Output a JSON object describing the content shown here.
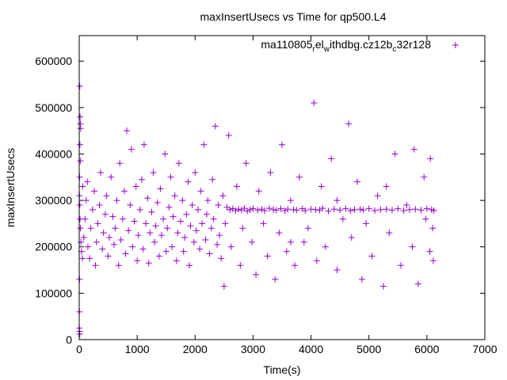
{
  "chart_data": {
    "type": "scatter",
    "title": "maxInsertUsecs vs Time for qp500.L4",
    "xlabel": "Time(s)",
    "ylabel": "maxInsertUsecs",
    "xlim": [
      0,
      7000
    ],
    "ylim": [
      0,
      655000
    ],
    "xticks": [
      0,
      1000,
      2000,
      3000,
      4000,
      5000,
      6000,
      7000
    ],
    "yticks": [
      0,
      100000,
      200000,
      300000,
      400000,
      500000,
      600000
    ],
    "grid": false,
    "legend_position": "top-right",
    "series": [
      {
        "name": "ma110805_rel_withdbg.cz12b_c32r128",
        "legend_label": {
          "base1": "ma110805",
          "sub1": "r",
          "base2": "el",
          "sub2": "w",
          "base3": "ithdbg.cz12b",
          "sub3": "c",
          "base4": "32r128"
        },
        "color": "#9400D3",
        "marker": "plus",
        "points": [
          [
            10,
            546000
          ],
          [
            15,
            480000
          ],
          [
            20,
            465000
          ],
          [
            25,
            455000
          ],
          [
            12,
            420000
          ],
          [
            18,
            385000
          ],
          [
            8,
            350000
          ],
          [
            5,
            310000
          ],
          [
            10,
            290000
          ],
          [
            14,
            260000
          ],
          [
            20,
            240000
          ],
          [
            6,
            130000
          ],
          [
            4,
            60000
          ],
          [
            3,
            25000
          ],
          [
            6,
            18000
          ],
          [
            10,
            12000
          ],
          [
            30,
            210000
          ],
          [
            40,
            190000
          ],
          [
            55,
            175000
          ],
          [
            60,
            330000
          ],
          [
            80,
            220000
          ],
          [
            100,
            260000
          ],
          [
            120,
            300000
          ],
          [
            140,
            340000
          ],
          [
            150,
            200000
          ],
          [
            180,
            175000
          ],
          [
            200,
            240000
          ],
          [
            230,
            280000
          ],
          [
            260,
            320000
          ],
          [
            280,
            160000
          ],
          [
            300,
            210000
          ],
          [
            320,
            250000
          ],
          [
            350,
            290000
          ],
          [
            370,
            360000
          ],
          [
            400,
            195000
          ],
          [
            420,
            230000
          ],
          [
            450,
            270000
          ],
          [
            470,
            310000
          ],
          [
            500,
            180000
          ],
          [
            520,
            220000
          ],
          [
            550,
            350000
          ],
          [
            580,
            265000
          ],
          [
            600,
            205000
          ],
          [
            620,
            240000
          ],
          [
            650,
            300000
          ],
          [
            680,
            160000
          ],
          [
            700,
            380000
          ],
          [
            720,
            215000
          ],
          [
            750,
            260000
          ],
          [
            780,
            320000
          ],
          [
            800,
            185000
          ],
          [
            820,
            450000
          ],
          [
            850,
            235000
          ],
          [
            880,
            290000
          ],
          [
            900,
            410000
          ],
          [
            920,
            200000
          ],
          [
            950,
            255000
          ],
          [
            980,
            330000
          ],
          [
            1000,
            170000
          ],
          [
            1020,
            225000
          ],
          [
            1050,
            280000
          ],
          [
            1080,
            345000
          ],
          [
            1100,
            195000
          ],
          [
            1120,
            420000
          ],
          [
            1150,
            250000
          ],
          [
            1180,
            305000
          ],
          [
            1200,
            165000
          ],
          [
            1220,
            230000
          ],
          [
            1250,
            275000
          ],
          [
            1280,
            360000
          ],
          [
            1300,
            210000
          ],
          [
            1320,
            245000
          ],
          [
            1350,
            295000
          ],
          [
            1380,
            180000
          ],
          [
            1400,
            325000
          ],
          [
            1420,
            225000
          ],
          [
            1450,
            260000
          ],
          [
            1480,
            400000
          ],
          [
            1500,
            190000
          ],
          [
            1520,
            240000
          ],
          [
            1550,
            285000
          ],
          [
            1580,
            350000
          ],
          [
            1600,
            200000
          ],
          [
            1620,
            265000
          ],
          [
            1650,
            310000
          ],
          [
            1680,
            170000
          ],
          [
            1700,
            230000
          ],
          [
            1720,
            380000
          ],
          [
            1750,
            255000
          ],
          [
            1780,
            300000
          ],
          [
            1800,
            190000
          ],
          [
            1820,
            220000
          ],
          [
            1850,
            270000
          ],
          [
            1880,
            340000
          ],
          [
            1900,
            160000
          ],
          [
            1920,
            245000
          ],
          [
            1950,
            290000
          ],
          [
            1980,
            210000
          ],
          [
            2000,
            360000
          ],
          [
            2020,
            235000
          ],
          [
            2050,
            280000
          ],
          [
            2080,
            195000
          ],
          [
            2100,
            320000
          ],
          [
            2120,
            250000
          ],
          [
            2150,
            420000
          ],
          [
            2180,
            215000
          ],
          [
            2200,
            270000
          ],
          [
            2220,
            300000
          ],
          [
            2250,
            185000
          ],
          [
            2280,
            240000
          ],
          [
            2300,
            345000
          ],
          [
            2320,
            260000
          ],
          [
            2350,
            460000
          ],
          [
            2380,
            205000
          ],
          [
            2400,
            290000
          ],
          [
            2420,
            225000
          ],
          [
            2450,
            175000
          ],
          [
            2480,
            310000
          ],
          [
            2500,
            115000
          ],
          [
            2520,
            250000
          ],
          [
            2550,
            285000
          ],
          [
            2580,
            440000
          ],
          [
            2600,
            280000
          ],
          [
            2620,
            200000
          ],
          [
            2650,
            282000
          ],
          [
            2700,
            278000
          ],
          [
            2720,
            330000
          ],
          [
            2750,
            281000
          ],
          [
            2780,
            160000
          ],
          [
            2800,
            279000
          ],
          [
            2820,
            240000
          ],
          [
            2850,
            283000
          ],
          [
            2880,
            380000
          ],
          [
            2900,
            277000
          ],
          [
            2950,
            280000
          ],
          [
            2980,
            210000
          ],
          [
            3000,
            282000
          ],
          [
            3050,
            140000
          ],
          [
            3080,
            279000
          ],
          [
            3100,
            320000
          ],
          [
            3150,
            281000
          ],
          [
            3180,
            250000
          ],
          [
            3200,
            278000
          ],
          [
            3250,
            180000
          ],
          [
            3280,
            283000
          ],
          [
            3300,
            360000
          ],
          [
            3350,
            280000
          ],
          [
            3380,
            130000
          ],
          [
            3400,
            279000
          ],
          [
            3450,
            230000
          ],
          [
            3480,
            282000
          ],
          [
            3500,
            420000
          ],
          [
            3550,
            278000
          ],
          [
            3580,
            190000
          ],
          [
            3600,
            281000
          ],
          [
            3650,
            300000
          ],
          [
            3700,
            280000
          ],
          [
            3720,
            160000
          ],
          [
            3750,
            279000
          ],
          [
            3800,
            350000
          ],
          [
            3850,
            282000
          ],
          [
            3880,
            210000
          ],
          [
            3900,
            278000
          ],
          [
            3950,
            240000
          ],
          [
            4000,
            281000
          ],
          [
            4050,
            510000
          ],
          [
            4080,
            280000
          ],
          [
            4100,
            170000
          ],
          [
            4150,
            279000
          ],
          [
            4180,
            330000
          ],
          [
            4200,
            283000
          ],
          [
            4250,
            200000
          ],
          [
            4300,
            277000
          ],
          [
            4350,
            390000
          ],
          [
            4400,
            281000
          ],
          [
            4450,
            150000
          ],
          [
            4500,
            279000
          ],
          [
            4550,
            260000
          ],
          [
            4600,
            282000
          ],
          [
            4650,
            465000
          ],
          [
            4680,
            278000
          ],
          [
            4700,
            220000
          ],
          [
            4750,
            280000
          ],
          [
            4800,
            340000
          ],
          [
            4850,
            281000
          ],
          [
            4880,
            130000
          ],
          [
            4900,
            279000
          ],
          [
            4950,
            250000
          ],
          [
            5000,
            282000
          ],
          [
            5050,
            180000
          ],
          [
            5100,
            278000
          ],
          [
            5150,
            310000
          ],
          [
            5200,
            280000
          ],
          [
            5250,
            115000
          ],
          [
            5300,
            281000
          ],
          [
            5350,
            230000
          ],
          [
            5400,
            279000
          ],
          [
            5450,
            400000
          ],
          [
            5500,
            282000
          ],
          [
            5550,
            160000
          ],
          [
            5600,
            278000
          ],
          [
            5650,
            290000
          ],
          [
            5700,
            280000
          ],
          [
            5750,
            200000
          ],
          [
            5800,
            281000
          ],
          [
            5850,
            120000
          ],
          [
            5900,
            279000
          ],
          [
            5950,
            350000
          ],
          [
            6000,
            282000
          ],
          [
            6050,
            190000
          ],
          [
            6080,
            280000
          ],
          [
            6100,
            240000
          ],
          [
            6120,
            278000
          ],
          [
            6110,
            170000
          ],
          [
            6060,
            390000
          ],
          [
            5980,
            260000
          ],
          [
            5780,
            410000
          ],
          [
            5300,
            330000
          ],
          [
            4450,
            300000
          ],
          [
            3650,
            210000
          ]
        ]
      }
    ]
  }
}
